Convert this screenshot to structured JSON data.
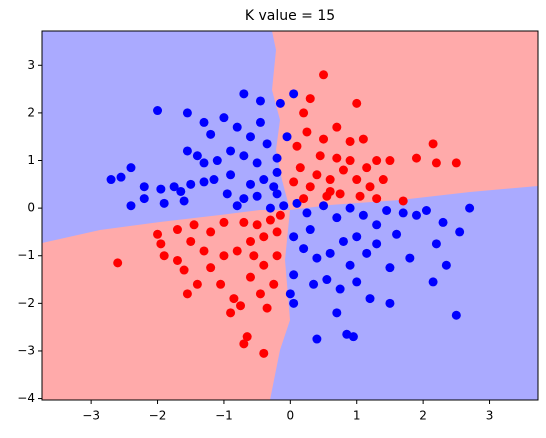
{
  "chart_data": {
    "type": "scatter",
    "title": "K value = 15",
    "xlim": [
      -3.74,
      3.73
    ],
    "ylim": [
      -4.03,
      3.72
    ],
    "xticks": [
      {
        "value": -3,
        "label": "−3"
      },
      {
        "value": -2,
        "label": "−2"
      },
      {
        "value": -1,
        "label": "−1"
      },
      0,
      1,
      2,
      3
    ],
    "yticks": [
      {
        "value": -4,
        "label": "−4"
      },
      {
        "value": -3,
        "label": "−3"
      },
      {
        "value": -2,
        "label": "−2"
      },
      {
        "value": -1,
        "label": "−1"
      },
      0,
      1,
      2,
      3
    ],
    "series": [
      {
        "color": "#0000ff",
        "x": [
          -2.0,
          -1.55,
          -1.3,
          -0.7,
          -0.45,
          0.05,
          -0.15,
          -1.0,
          -1.2,
          -0.8,
          -0.6,
          -0.35,
          -1.55,
          -1.4,
          -1.3,
          -1.1,
          -0.9,
          -0.7,
          -0.5,
          -0.2,
          -2.4,
          -2.7,
          -2.55,
          -2.2,
          -1.95,
          -1.75,
          -1.65,
          -1.5,
          -1.3,
          -1.15,
          -0.9,
          -0.6,
          -0.4,
          -0.2,
          -2.4,
          -2.2,
          -1.9,
          -1.6,
          -0.95,
          -0.7,
          -0.5,
          -0.2,
          -0.1,
          -0.8,
          -0.3,
          -0.45,
          -0.05,
          -0.25,
          0.1,
          0.25,
          0.5,
          0.7,
          0.9,
          1.1,
          1.3,
          1.45,
          1.7,
          1.9,
          2.05,
          2.3,
          2.55,
          2.7,
          2.2,
          2.35,
          2.15,
          2.5,
          1.8,
          1.5,
          1.3,
          1.0,
          0.8,
          0.6,
          0.4,
          0.2,
          0.05,
          0.0,
          0.05,
          0.35,
          0.55,
          0.75,
          1.0,
          1.2,
          1.5,
          0.85,
          0.95,
          0.4,
          0.9,
          1.6,
          0.3,
          0.05,
          1.15,
          0.7
        ],
        "values": [
          2.05,
          2.0,
          1.8,
          2.4,
          2.25,
          2.4,
          2.2,
          1.9,
          1.55,
          1.7,
          1.5,
          1.35,
          1.2,
          1.1,
          0.95,
          1.0,
          1.2,
          1.1,
          0.95,
          1.05,
          0.85,
          0.6,
          0.65,
          0.45,
          0.4,
          0.45,
          0.35,
          0.5,
          0.55,
          0.6,
          0.7,
          0.5,
          0.6,
          0.75,
          0.05,
          0.2,
          0.1,
          0.15,
          0.3,
          0.2,
          0.25,
          0.3,
          0.05,
          0.05,
          0.0,
          1.8,
          1.5,
          0.45,
          0.1,
          -0.1,
          0.05,
          -0.2,
          0.0,
          -0.15,
          -0.35,
          -0.05,
          -0.1,
          -0.15,
          -0.05,
          -0.3,
          -0.5,
          0.0,
          -0.75,
          -1.2,
          -1.55,
          -2.25,
          -1.05,
          -1.25,
          -0.75,
          -0.6,
          -0.7,
          -0.95,
          -1.05,
          -0.85,
          -1.4,
          -1.8,
          -2.0,
          -1.6,
          -1.5,
          -1.7,
          -1.55,
          -1.9,
          -2.0,
          -2.65,
          -2.7,
          -2.75,
          -1.2,
          -0.55,
          -0.45,
          -0.6,
          -0.95,
          -2.2
        ]
      },
      {
        "color": "#ff0000",
        "x": [
          0.5,
          1.0,
          0.3,
          0.2,
          0.7,
          0.5,
          0.25,
          0.1,
          0.9,
          1.1,
          1.3,
          1.5,
          1.9,
          2.15,
          2.5,
          2.2,
          1.4,
          1.2,
          1.0,
          0.8,
          0.6,
          0.4,
          0.3,
          0.15,
          0.05,
          0.75,
          1.05,
          1.3,
          1.7,
          0.45,
          0.7,
          0.9,
          0.2,
          0.55,
          1.15,
          0.6,
          -2.6,
          -2.0,
          -1.95,
          -1.9,
          -1.7,
          -1.5,
          -1.7,
          -1.45,
          -1.6,
          -1.4,
          -1.55,
          -1.2,
          -1.0,
          -0.8,
          -0.6,
          -0.4,
          -0.2,
          -1.2,
          -1.0,
          -0.7,
          -0.5,
          -0.3,
          -0.15,
          -1.05,
          -0.85,
          -0.6,
          -0.4,
          -0.2,
          -0.9,
          -0.75,
          -0.45,
          -0.35,
          -0.65,
          -0.7,
          -0.4,
          -0.25,
          -1.3,
          -0.55
        ],
        "values": [
          2.8,
          2.2,
          2.3,
          2.0,
          1.7,
          1.45,
          1.6,
          1.3,
          1.4,
          1.45,
          1.0,
          1.0,
          1.05,
          1.35,
          0.95,
          0.95,
          0.6,
          0.45,
          0.6,
          0.8,
          0.6,
          0.7,
          0.45,
          0.85,
          0.55,
          0.3,
          0.25,
          0.2,
          0.15,
          1.1,
          1.05,
          1.0,
          0.2,
          0.25,
          0.85,
          0.35,
          -1.15,
          -0.55,
          -0.75,
          -1.0,
          -1.1,
          -0.7,
          -0.45,
          -0.35,
          -1.3,
          -1.6,
          -1.8,
          -1.25,
          -1.0,
          -0.9,
          -0.7,
          -0.6,
          -0.5,
          -0.5,
          -0.3,
          -0.3,
          -0.35,
          -0.25,
          -0.15,
          -1.6,
          -1.9,
          -1.45,
          -1.2,
          -1.0,
          -2.2,
          -2.05,
          -1.8,
          -2.1,
          -2.7,
          -2.85,
          -3.05,
          -1.6,
          -0.9,
          -1.0
        ]
      }
    ]
  }
}
